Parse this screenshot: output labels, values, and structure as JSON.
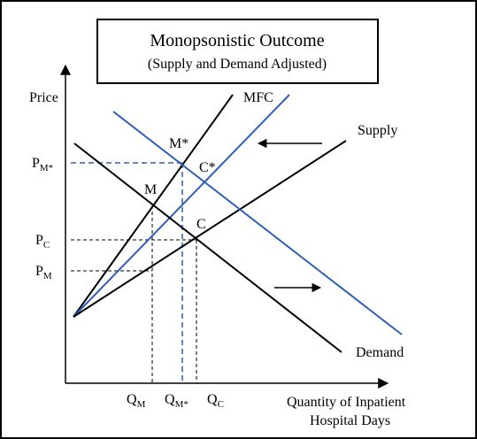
{
  "title": {
    "line1": "Monopsonistic Outcome",
    "line2": "(Supply and Demand Adjusted)"
  },
  "axes": {
    "y_label": "Price",
    "x_label_line1": "Quantity of Inpatient",
    "x_label_line2": "Hospital Days"
  },
  "curves": {
    "mfc": "MFC",
    "supply": "Supply",
    "demand": "Demand"
  },
  "points": {
    "m_star": "M*",
    "m": "M",
    "c_star": "C*",
    "c": "C"
  },
  "price_ticks": [
    {
      "id": "pm-star",
      "base": "P",
      "sub": "M*"
    },
    {
      "id": "pc",
      "base": "P",
      "sub": "C"
    },
    {
      "id": "pm",
      "base": "P",
      "sub": "M"
    }
  ],
  "quantity_ticks": [
    {
      "id": "qm",
      "base": "Q",
      "sub": "M"
    },
    {
      "id": "qm-star",
      "base": "Q",
      "sub": "M*"
    },
    {
      "id": "qc",
      "base": "Q",
      "sub": "C"
    }
  ],
  "colors": {
    "original_curves": "#000000",
    "adjusted_curves": "#2f5fb8",
    "adjusted_guides": "#2f5fb8",
    "original_guides": "#000000"
  },
  "arrows": {
    "supply_shift": "left",
    "demand_shift": "right"
  }
}
